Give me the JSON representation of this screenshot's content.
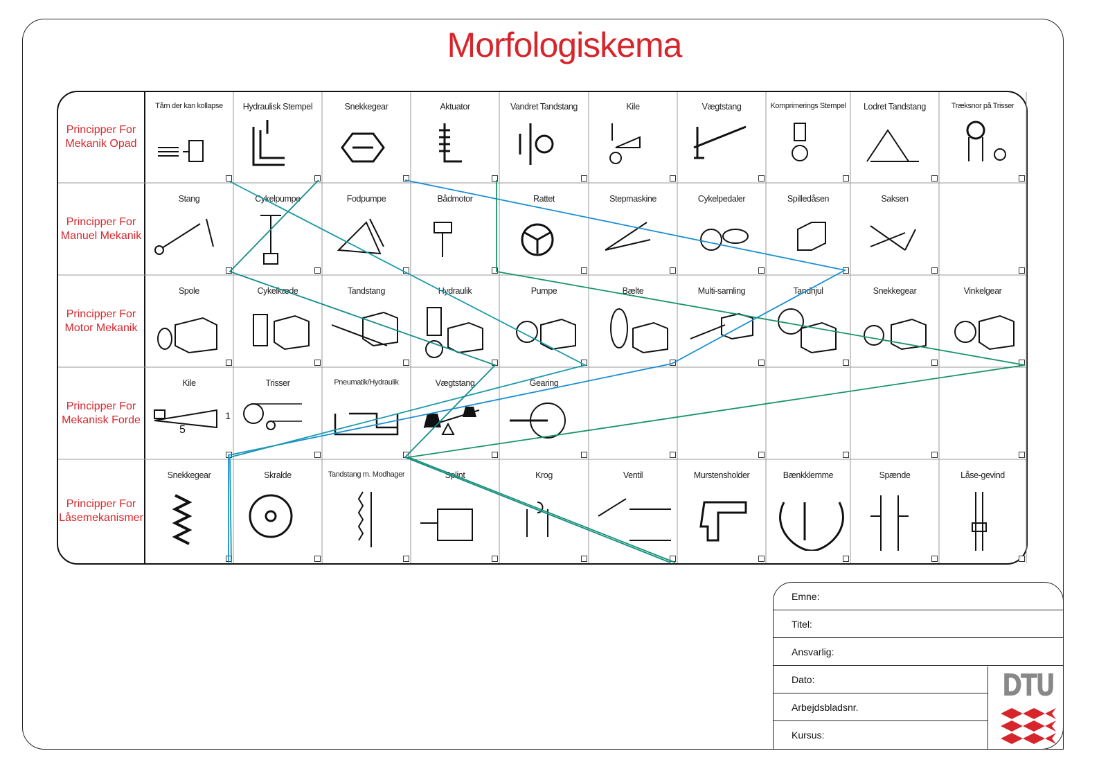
{
  "title": "Morfologiskema",
  "rows": [
    {
      "label": "Principper For Mekanik Opad",
      "cells": [
        "Tårn der kan kollapse",
        "Hydraulisk Stempel",
        "Snekkegear",
        "Aktuator",
        "Vandret Tandstang",
        "Kile",
        "Vægtstang",
        "Komprimerings Stempel",
        "Lodret Tandstang",
        "Træksnor på Trisser"
      ]
    },
    {
      "label": "Principper For Manuel Mekanik",
      "cells": [
        "Stang",
        "Cykelpumpe",
        "Fodpumpe",
        "Bådmotor",
        "Rattet",
        "Stepmaskine",
        "Cykelpedaler",
        "Spilledåsen",
        "Saksen",
        ""
      ]
    },
    {
      "label": "Principper For Motor Mekanik",
      "cells": [
        "Spole",
        "Cykelkæde",
        "Tandstang",
        "Hydraulik",
        "Pumpe",
        "Bælte",
        "Multi-samling",
        "Tandhjul",
        "Snekkegear",
        "Vinkelgear"
      ]
    },
    {
      "label": "Principper For Mekanisk Forde",
      "cells": [
        "Kile",
        "Trisser",
        "Pneumatik/Hydraulik",
        "Vægtstang",
        "Gearing",
        "",
        "",
        "",
        "",
        ""
      ]
    },
    {
      "label": "Principper For Låsemekanismer",
      "cells": [
        "Snekkegear",
        "Skralde",
        "Tandstang m. Modhager",
        "Splint",
        "Krog",
        "Ventil",
        "Murstensholder",
        "Bænkklemme",
        "Spænde",
        "Låse-gevind"
      ]
    }
  ],
  "wedge_numbers": {
    "a": "1",
    "b": "5"
  },
  "info": {
    "emne": "Emne:",
    "titel": "Titel:",
    "ansvarlig": "Ansvarlig:",
    "dato": "Dato:",
    "arbejdsbladsnr": "Arbejdsbladsnr.",
    "kursus": "Kursus:"
  },
  "logo_text": "DTU",
  "colors": {
    "title": "#d6262c",
    "path_blue": "#1a8fd0",
    "path_green": "#17946b",
    "path_teal": "#1a9aa8",
    "logo_red": "#d6262c"
  }
}
